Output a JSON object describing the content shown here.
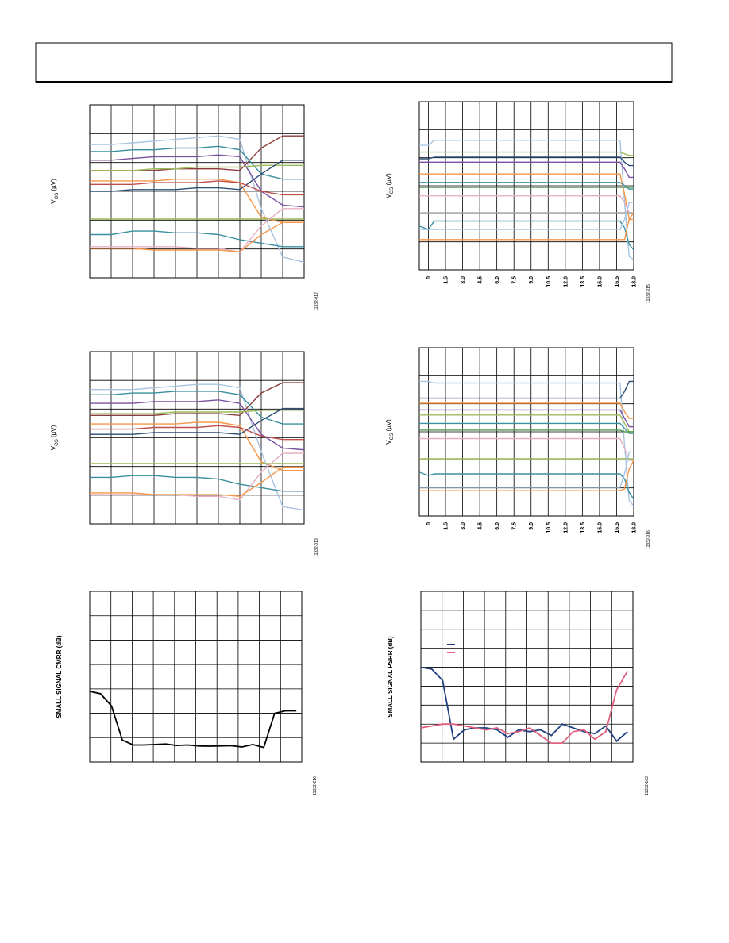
{
  "chart_data": [
    {
      "type": "line",
      "y_label": [
        "V",
        "OS",
        " (µV)"
      ],
      "figure_id": "11332-012",
      "x": [
        0,
        1,
        2,
        3,
        4,
        5,
        6,
        7,
        8,
        9,
        10
      ],
      "xlim": [
        0,
        10
      ],
      "ylim": [
        0,
        100
      ],
      "series": [
        {
          "color": "#a8c4e0",
          "values": [
            77,
            77,
            78,
            79,
            80,
            81,
            82,
            80,
            40,
            12,
            9
          ]
        },
        {
          "color": "#8b3a3a",
          "values": [
            62,
            62,
            62,
            62,
            63,
            63,
            63,
            62,
            75,
            82,
            82
          ]
        },
        {
          "color": "#3a8fa0",
          "values": [
            73,
            73,
            74,
            74,
            75,
            75,
            76,
            74,
            60,
            57,
            57
          ]
        },
        {
          "color": "#7b4fa0",
          "values": [
            68,
            68,
            69,
            70,
            70,
            70,
            71,
            70,
            50,
            42,
            41
          ]
        },
        {
          "color": "#9bbb59",
          "values": [
            62,
            62,
            62,
            63,
            63,
            64,
            64,
            64,
            65,
            65,
            65
          ]
        },
        {
          "color": "#f79646",
          "values": [
            56,
            56,
            56,
            56,
            57,
            57,
            57,
            55,
            35,
            32,
            32
          ]
        },
        {
          "color": "#2c4d75",
          "values": [
            50,
            50,
            51,
            51,
            51,
            52,
            52,
            51,
            60,
            68,
            68
          ]
        },
        {
          "color": "#c0504d",
          "values": [
            54,
            54,
            54,
            55,
            55,
            55,
            56,
            55,
            50,
            48,
            48
          ]
        },
        {
          "color": "#9bbb59",
          "values": [
            34,
            34,
            34,
            34,
            34,
            34,
            34,
            34,
            34,
            34,
            34
          ]
        },
        {
          "color": "#3a8fa0",
          "values": [
            25,
            25,
            27,
            27,
            26,
            26,
            25,
            22,
            20,
            18,
            18
          ]
        },
        {
          "color": "#e6b0c0",
          "values": [
            18,
            18,
            18,
            18,
            18,
            17,
            17,
            15,
            30,
            40,
            40
          ]
        },
        {
          "color": "#f79646",
          "values": [
            17,
            17,
            17,
            16,
            16,
            16,
            16,
            15,
            25,
            32,
            32
          ]
        }
      ]
    },
    {
      "type": "line",
      "y_label": [
        "V",
        "OS",
        " (µV)"
      ],
      "figure_id": "11332-015",
      "x": [
        -0.8,
        0,
        0.5,
        1.5,
        16.3,
        16.8,
        17.2,
        17.6,
        18
      ],
      "xlim": [
        -0.8,
        18
      ],
      "ylim": [
        0,
        100
      ],
      "xticks": [
        0,
        1.5,
        {
          "value": 3,
          "label": "3.0"
        },
        4.5,
        {
          "value": 6,
          "label": "6.0"
        },
        7.5,
        {
          "value": 9,
          "label": "9.0"
        },
        10.5,
        {
          "value": 12,
          "label": "12.0"
        },
        13.5,
        {
          "value": 15,
          "label": "15.0"
        },
        16.5,
        {
          "value": 18,
          "label": "18.0"
        }
      ],
      "series": [
        {
          "color": "#a8c4e0",
          "values": [
            74,
            74,
            77,
            77,
            77,
            77,
            40,
            8,
            6
          ]
        },
        {
          "color": "#9bbb59",
          "values": [
            70,
            70,
            70,
            70,
            70,
            70,
            69,
            68,
            68
          ]
        },
        {
          "color": "#2c4d75",
          "values": [
            66,
            66,
            67,
            67,
            67,
            67,
            64,
            62,
            62
          ]
        },
        {
          "color": "#7b4fa0",
          "values": [
            64,
            64,
            64,
            64,
            64,
            64,
            60,
            55,
            55
          ]
        },
        {
          "color": "#f79646",
          "values": [
            57,
            57,
            57,
            57,
            57,
            57,
            45,
            30,
            30
          ]
        },
        {
          "color": "#3a8fa0",
          "values": [
            52,
            52,
            52,
            52,
            52,
            52,
            50,
            48,
            48
          ]
        },
        {
          "color": "#4f9a4f",
          "values": [
            49,
            49,
            49,
            49,
            49,
            49,
            49,
            49,
            49
          ]
        },
        {
          "color": "#e6b0c0",
          "values": [
            44,
            44,
            44,
            44,
            44,
            44,
            40,
            34,
            34
          ]
        },
        {
          "color": "#aaaaaa",
          "values": [
            34,
            34,
            34,
            34,
            34,
            34,
            34,
            34,
            34
          ]
        },
        {
          "color": "#3a8fa0",
          "values": [
            26,
            24,
            29,
            29,
            29,
            29,
            25,
            15,
            12
          ]
        },
        {
          "color": "#a8c4e0",
          "values": [
            24,
            24,
            24,
            24,
            24,
            24,
            30,
            40,
            40
          ]
        },
        {
          "color": "#f79646",
          "values": [
            18,
            18,
            18,
            18,
            18,
            18,
            18,
            30,
            34
          ]
        }
      ]
    },
    {
      "type": "line",
      "y_label": [
        "V",
        "OS",
        " (µV)"
      ],
      "figure_id": "11332-013",
      "x": [
        0,
        1,
        2,
        3,
        4,
        5,
        6,
        7,
        8,
        9,
        10
      ],
      "xlim": [
        0,
        10
      ],
      "ylim": [
        0,
        100
      ],
      "series": [
        {
          "color": "#a8c4e0",
          "values": [
            78,
            78,
            78,
            79,
            80,
            81,
            81,
            79,
            42,
            10,
            8
          ]
        },
        {
          "color": "#8b3a3a",
          "values": [
            63,
            63,
            63,
            63,
            64,
            64,
            64,
            63,
            76,
            82,
            82
          ]
        },
        {
          "color": "#3a8fa0",
          "values": [
            75,
            75,
            76,
            76,
            77,
            77,
            77,
            75,
            62,
            58,
            58
          ]
        },
        {
          "color": "#7b4fa0",
          "values": [
            70,
            70,
            70,
            71,
            71,
            71,
            72,
            70,
            52,
            44,
            43
          ]
        },
        {
          "color": "#9bbb59",
          "values": [
            64,
            64,
            64,
            64,
            65,
            65,
            65,
            65,
            66,
            66,
            66
          ]
        },
        {
          "color": "#f79646",
          "values": [
            58,
            58,
            58,
            58,
            58,
            59,
            59,
            57,
            36,
            31,
            31
          ]
        },
        {
          "color": "#2c4d75",
          "values": [
            52,
            52,
            52,
            53,
            53,
            53,
            53,
            52,
            60,
            67,
            67
          ]
        },
        {
          "color": "#c0504d",
          "values": [
            55,
            55,
            55,
            56,
            56,
            56,
            57,
            56,
            51,
            49,
            49
          ]
        },
        {
          "color": "#9bbb59",
          "values": [
            35,
            35,
            35,
            35,
            35,
            35,
            35,
            35,
            35,
            35,
            35
          ]
        },
        {
          "color": "#3a8fa0",
          "values": [
            27,
            27,
            28,
            28,
            27,
            27,
            26,
            23,
            21,
            19,
            19
          ]
        },
        {
          "color": "#e6b0c0",
          "values": [
            17,
            17,
            17,
            17,
            17,
            16,
            16,
            14,
            30,
            41,
            41
          ]
        },
        {
          "color": "#f79646",
          "values": [
            18,
            18,
            18,
            17,
            17,
            17,
            17,
            16,
            24,
            33,
            33
          ]
        }
      ]
    },
    {
      "type": "line",
      "y_label": [
        "V",
        "OS",
        " (µV)"
      ],
      "figure_id": "11332-016",
      "x": [
        -0.8,
        0,
        0.5,
        1.5,
        16.3,
        16.8,
        17.2,
        17.6,
        18
      ],
      "xlim": [
        -0.8,
        18
      ],
      "ylim": [
        0,
        100
      ],
      "xticks": [
        0,
        1.5,
        {
          "value": 3,
          "label": "3.0"
        },
        4.5,
        {
          "value": 6,
          "label": "6.0"
        },
        7.5,
        {
          "value": 9,
          "label": "9.0"
        },
        10.5,
        {
          "value": 12,
          "label": "12.0"
        },
        13.5,
        {
          "value": 15,
          "label": "15.0"
        },
        16.5,
        {
          "value": 18,
          "label": "18.0"
        }
      ],
      "series": [
        {
          "color": "#a8c4e0",
          "values": [
            80,
            80,
            79,
            79,
            79,
            79,
            42,
            9,
            6
          ]
        },
        {
          "color": "#2c4d75",
          "values": [
            70,
            70,
            70,
            70,
            70,
            70,
            74,
            80,
            80
          ]
        },
        {
          "color": "#f79646",
          "values": [
            67,
            67,
            67,
            67,
            67,
            67,
            62,
            58,
            58
          ]
        },
        {
          "color": "#7b4fa0",
          "values": [
            63,
            63,
            63,
            63,
            63,
            63,
            58,
            53,
            53
          ]
        },
        {
          "color": "#9bbb59",
          "values": [
            60,
            60,
            60,
            60,
            60,
            60,
            55,
            50,
            50
          ]
        },
        {
          "color": "#3a8fa0",
          "values": [
            55,
            55,
            55,
            55,
            55,
            55,
            52,
            49,
            49
          ]
        },
        {
          "color": "#4f9a4f",
          "values": [
            51,
            51,
            51,
            51,
            51,
            51,
            50,
            50,
            50
          ]
        },
        {
          "color": "#e6b0c0",
          "values": [
            46,
            46,
            46,
            46,
            46,
            46,
            40,
            33,
            33
          ]
        },
        {
          "color": "#9bbb59",
          "values": [
            34,
            34,
            34,
            34,
            34,
            34,
            34,
            34,
            34
          ]
        },
        {
          "color": "#3a8fa0",
          "values": [
            26,
            24,
            25,
            25,
            25,
            25,
            22,
            14,
            10
          ]
        },
        {
          "color": "#a8c4e0",
          "values": [
            17,
            17,
            17,
            17,
            17,
            17,
            25,
            38,
            38
          ]
        },
        {
          "color": "#f79646",
          "values": [
            15,
            15,
            15,
            15,
            15,
            15,
            16,
            28,
            33
          ]
        }
      ]
    },
    {
      "type": "line",
      "y_label": "SMALL SIGNAL CMRR (dB)",
      "figure_id": "11332-216",
      "x": [
        0,
        1,
        2,
        3,
        4,
        5,
        6,
        7,
        8,
        9,
        10,
        11,
        12,
        13,
        14,
        15,
        16,
        17,
        18,
        19
      ],
      "xlim": [
        0,
        19.5
      ],
      "ylim": [
        0,
        7
      ],
      "series": [
        {
          "color": "#000000",
          "values": [
            2.9,
            2.8,
            2.3,
            0.9,
            0.7,
            0.7,
            0.72,
            0.74,
            0.68,
            0.7,
            0.66,
            0.65,
            0.66,
            0.67,
            0.62,
            0.72,
            0.6,
            2.0,
            2.1,
            2.1
          ]
        }
      ]
    },
    {
      "type": "line",
      "y_label": "SMALL SIGNAL PSRR (dB)",
      "figure_id": "11332-163",
      "x": [
        0,
        1,
        2,
        3,
        4,
        5,
        6,
        7,
        8,
        9,
        10,
        11,
        12,
        13,
        14,
        15,
        16,
        17,
        18,
        19
      ],
      "xlim": [
        0,
        19.5
      ],
      "ylim": [
        0,
        9
      ],
      "series": [
        {
          "color": "#1f3f7f",
          "values": [
            5,
            4.9,
            4.3,
            1.2,
            1.7,
            1.8,
            1.8,
            1.7,
            1.3,
            1.7,
            1.6,
            1.7,
            1.4,
            2.0,
            1.8,
            1.6,
            1.5,
            1.9,
            1.1,
            1.6
          ]
        },
        {
          "color": "#e06080",
          "values": [
            1.8,
            1.9,
            2.0,
            2.0,
            1.9,
            1.8,
            1.7,
            1.8,
            1.5,
            1.6,
            1.8,
            1.4,
            1.0,
            1.0,
            1.6,
            1.7,
            1.2,
            1.6,
            3.8,
            4.8
          ]
        }
      ]
    }
  ]
}
